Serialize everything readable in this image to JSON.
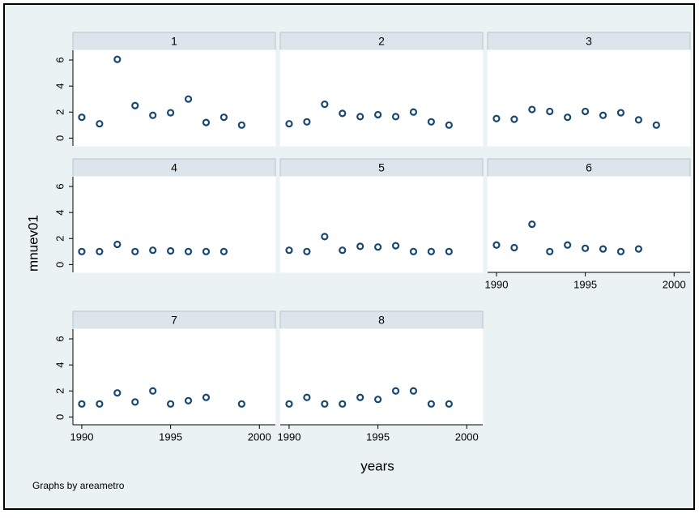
{
  "chart_data": [
    {
      "type": "scatter",
      "title": "1",
      "x": [
        1990,
        1991,
        1992,
        1993,
        1994,
        1995,
        1996,
        1997,
        1998,
        1999
      ],
      "values": [
        1.6,
        1.1,
        6.05,
        2.5,
        1.75,
        1.95,
        3.0,
        1.2,
        1.6,
        1.0
      ],
      "color": "#1a476f",
      "xlim": [
        1989.5,
        2000.9
      ],
      "ylim": [
        -0.6,
        6.75
      ],
      "xticks": [
        1990,
        1995,
        2000
      ],
      "yticks": [
        0,
        2,
        4,
        6
      ]
    },
    {
      "type": "scatter",
      "title": "2",
      "x": [
        1990,
        1991,
        1992,
        1993,
        1994,
        1995,
        1996,
        1997,
        1998,
        1999
      ],
      "values": [
        1.1,
        1.25,
        2.6,
        1.9,
        1.65,
        1.8,
        1.65,
        2.0,
        1.25,
        1.0
      ],
      "color": "#1a476f",
      "xlim": [
        1989.5,
        2000.9
      ],
      "ylim": [
        -0.6,
        6.75
      ],
      "xticks": [
        1990,
        1995,
        2000
      ],
      "yticks": [
        0,
        2,
        4,
        6
      ]
    },
    {
      "type": "scatter",
      "title": "3",
      "x": [
        1990,
        1991,
        1992,
        1993,
        1994,
        1995,
        1996,
        1997,
        1998,
        1999
      ],
      "values": [
        1.5,
        1.45,
        2.2,
        2.05,
        1.6,
        2.05,
        1.75,
        1.95,
        1.4,
        1.0
      ],
      "color": "#1a476f",
      "xlim": [
        1989.5,
        2000.9
      ],
      "ylim": [
        -0.6,
        6.75
      ],
      "xticks": [
        1990,
        1995,
        2000
      ],
      "yticks": [
        0,
        2,
        4,
        6
      ]
    },
    {
      "type": "scatter",
      "title": "4",
      "x": [
        1990,
        1991,
        1992,
        1993,
        1994,
        1995,
        1996,
        1997,
        1998
      ],
      "values": [
        1.0,
        1.0,
        1.55,
        1.0,
        1.1,
        1.05,
        1.0,
        1.0,
        1.0
      ],
      "color": "#1a476f",
      "xlim": [
        1989.5,
        2000.9
      ],
      "ylim": [
        -0.6,
        6.75
      ],
      "xticks": [
        1990,
        1995,
        2000
      ],
      "yticks": [
        0,
        2,
        4,
        6
      ]
    },
    {
      "type": "scatter",
      "title": "5",
      "x": [
        1990,
        1991,
        1992,
        1993,
        1994,
        1995,
        1996,
        1997,
        1998,
        1999
      ],
      "values": [
        1.1,
        1.0,
        2.15,
        1.1,
        1.4,
        1.35,
        1.45,
        1.0,
        1.0,
        1.0
      ],
      "color": "#1a476f",
      "xlim": [
        1989.5,
        2000.9
      ],
      "ylim": [
        -0.6,
        6.75
      ],
      "xticks": [
        1990,
        1995,
        2000
      ],
      "yticks": [
        0,
        2,
        4,
        6
      ]
    },
    {
      "type": "scatter",
      "title": "6",
      "x": [
        1990,
        1991,
        1992,
        1993,
        1994,
        1995,
        1996,
        1997,
        1998
      ],
      "values": [
        1.5,
        1.3,
        3.1,
        1.0,
        1.5,
        1.25,
        1.2,
        1.0,
        1.2
      ],
      "color": "#1a476f",
      "xlim": [
        1989.5,
        2000.9
      ],
      "ylim": [
        -0.6,
        6.75
      ],
      "xticks": [
        1990,
        1995,
        2000
      ],
      "yticks": [
        0,
        2,
        4,
        6
      ]
    },
    {
      "type": "scatter",
      "title": "7",
      "x": [
        1990,
        1991,
        1992,
        1993,
        1994,
        1995,
        1996,
        1997,
        1999
      ],
      "values": [
        1.0,
        1.0,
        1.85,
        1.15,
        2.0,
        1.0,
        1.25,
        1.5,
        1.0
      ],
      "color": "#1a476f",
      "xlim": [
        1989.5,
        2000.9
      ],
      "ylim": [
        -0.6,
        6.75
      ],
      "xticks": [
        1990,
        1995,
        2000
      ],
      "yticks": [
        0,
        2,
        4,
        6
      ]
    },
    {
      "type": "scatter",
      "title": "8",
      "x": [
        1990,
        1991,
        1992,
        1993,
        1994,
        1995,
        1996,
        1997,
        1998,
        1999
      ],
      "values": [
        1.0,
        1.5,
        1.0,
        1.0,
        1.5,
        1.35,
        2.0,
        2.0,
        1.0,
        1.0
      ],
      "color": "#1a476f",
      "xlim": [
        1989.5,
        2000.9
      ],
      "ylim": [
        -0.6,
        6.75
      ],
      "xticks": [
        1990,
        1995,
        2000
      ],
      "yticks": [
        0,
        2,
        4,
        6
      ]
    }
  ],
  "ylabel": "mnuev01",
  "xlabel": "years",
  "note": "Graphs by areametro"
}
